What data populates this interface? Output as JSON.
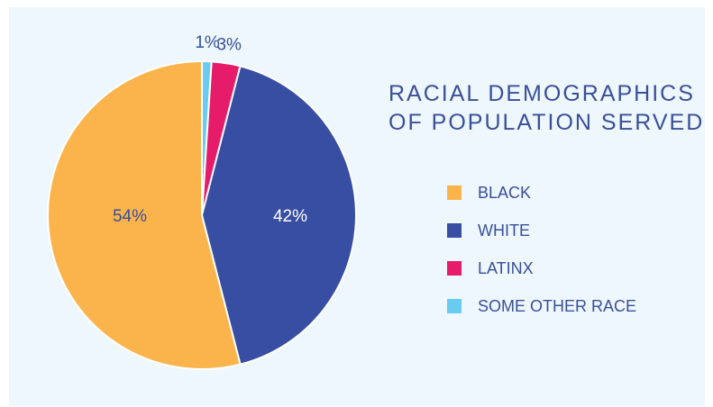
{
  "chart_data": {
    "type": "pie",
    "title": "RACIAL DEMOGRAPHICS OF POPULATION SERVED",
    "title_lines": [
      "RACIAL DEMOGRAPHICS",
      "OF POPULATION SERVED"
    ],
    "legend_position": "right",
    "slices": [
      {
        "name": "BLACK",
        "value": 54,
        "label": "54%",
        "color": "#fbb44c"
      },
      {
        "name": "WHITE",
        "value": 42,
        "label": "42%",
        "color": "#384ea2"
      },
      {
        "name": "LATINX",
        "value": 3,
        "label": "3%",
        "color": "#e61c6a"
      },
      {
        "name": "SOME OTHER RACE",
        "value": 1,
        "label": "1%",
        "color": "#68cbef"
      }
    ]
  },
  "colors": {
    "background": "#eef7fd",
    "text": "#3a4f9a"
  }
}
